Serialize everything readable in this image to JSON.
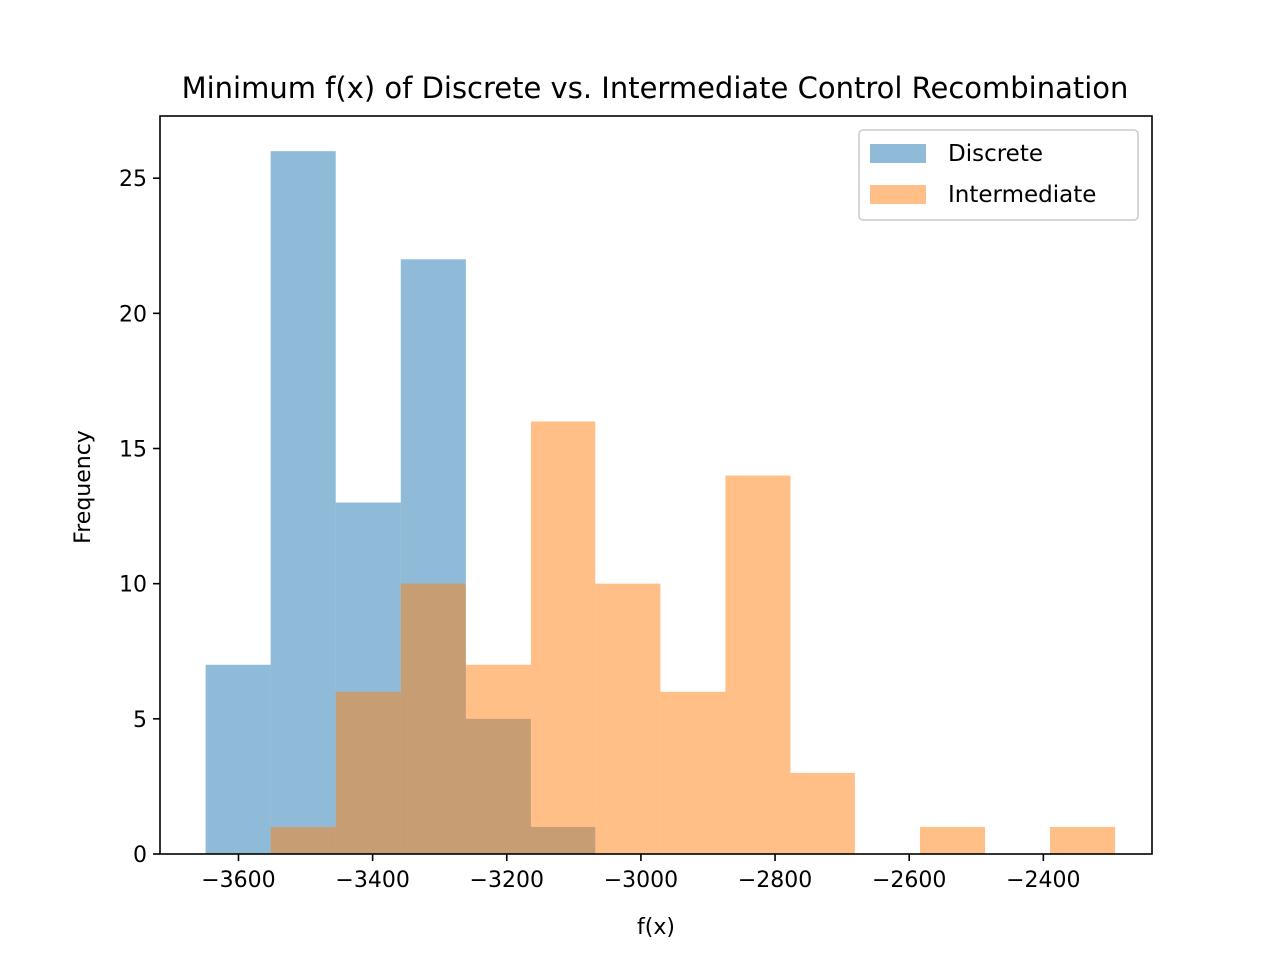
{
  "chart_data": {
    "type": "bar",
    "title": "Minimum f(x) of Discrete vs. Intermediate Control Recombination",
    "xlabel": "f(x)",
    "ylabel": "Frequency",
    "xlim": [
      -3717,
      -2238
    ],
    "ylim": [
      0,
      27.3
    ],
    "xticks": [
      -3600,
      -3400,
      -3200,
      -3000,
      -2800,
      -2600,
      -2400
    ],
    "xtick_labels": [
      "−3600",
      "−3400",
      "−3200",
      "−3000",
      "−2800",
      "−2600",
      "−2400"
    ],
    "yticks": [
      0,
      5,
      10,
      15,
      20,
      25
    ],
    "ytick_labels": [
      "0",
      "5",
      "10",
      "15",
      "20",
      "25"
    ],
    "grid": false,
    "legend_position": "top-right",
    "series": [
      {
        "name": "Discrete",
        "color": "#1f77b4",
        "alpha": 0.5,
        "bin_edges": [
          -3649,
          -3552,
          -3455,
          -3358,
          -3261,
          -3164,
          -3068
        ],
        "counts": [
          7,
          26,
          13,
          22,
          5,
          1
        ]
      },
      {
        "name": "Intermediate",
        "color": "#ff7f0e",
        "alpha": 0.5,
        "bin_edges": [
          -3552,
          -3455,
          -3358,
          -3261,
          -3164,
          -3068,
          -2971,
          -2874,
          -2777,
          -2681,
          -2584,
          -2487,
          -2390,
          -2293
        ],
        "counts": [
          1,
          6,
          10,
          7,
          16,
          10,
          6,
          14,
          3,
          0,
          1,
          0,
          1
        ]
      }
    ]
  }
}
